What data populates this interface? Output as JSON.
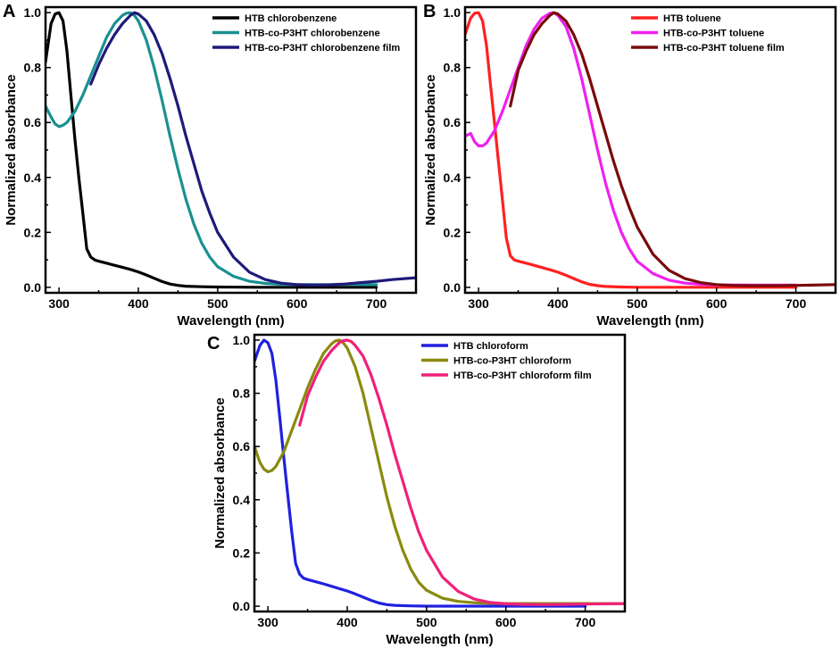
{
  "chart_data": [
    {
      "type": "line",
      "panel": "A",
      "xlabel": "Wavelength (nm)",
      "ylabel": "Normalized absorbance",
      "xlim": [
        283,
        750
      ],
      "ylim": [
        -0.02,
        1.02
      ],
      "xticks": [
        300,
        400,
        500,
        600,
        700
      ],
      "xtick_labels": [
        "300",
        "400",
        "500",
        "600",
        "700"
      ],
      "yticks": [
        0.0,
        0.2,
        0.4,
        0.6,
        0.8,
        1.0
      ],
      "ytick_labels": [
        "0.0",
        "0.2",
        "0.4",
        "0.6",
        "0.8",
        "1.0"
      ],
      "legend_position": "top-right",
      "series": [
        {
          "name": "HTB chlorobenzene",
          "color": "#000000",
          "x": [
            283,
            290,
            295,
            300,
            305,
            310,
            315,
            320,
            325,
            330,
            335,
            340,
            345,
            350,
            360,
            370,
            380,
            390,
            400,
            410,
            420,
            430,
            440,
            450,
            460,
            480,
            500,
            550,
            600,
            650,
            700
          ],
          "y": [
            0.82,
            0.96,
            0.995,
            1.0,
            0.97,
            0.86,
            0.7,
            0.54,
            0.4,
            0.27,
            0.14,
            0.11,
            0.1,
            0.095,
            0.088,
            0.08,
            0.073,
            0.065,
            0.056,
            0.045,
            0.033,
            0.021,
            0.012,
            0.007,
            0.004,
            0.002,
            0.001,
            0.0,
            0.0,
            0.0,
            0.0
          ]
        },
        {
          "name": "HTB-co-P3HT chlorobenzene",
          "color": "#1a9090",
          "x": [
            283,
            290,
            295,
            300,
            305,
            310,
            320,
            330,
            340,
            350,
            360,
            370,
            380,
            385,
            390,
            395,
            400,
            410,
            420,
            430,
            440,
            450,
            460,
            470,
            480,
            490,
            500,
            520,
            540,
            560,
            580,
            600,
            650,
            700
          ],
          "y": [
            0.66,
            0.62,
            0.595,
            0.585,
            0.59,
            0.6,
            0.64,
            0.7,
            0.77,
            0.84,
            0.91,
            0.96,
            0.99,
            0.998,
            1.0,
            0.99,
            0.97,
            0.9,
            0.8,
            0.68,
            0.55,
            0.43,
            0.32,
            0.23,
            0.16,
            0.11,
            0.075,
            0.04,
            0.022,
            0.014,
            0.011,
            0.01,
            0.01,
            0.01
          ]
        },
        {
          "name": "HTB-co-P3HT chlorobenzene film",
          "color": "#1f1a7a",
          "x": [
            340,
            350,
            360,
            370,
            380,
            390,
            395,
            400,
            410,
            420,
            430,
            440,
            450,
            460,
            470,
            480,
            490,
            500,
            520,
            540,
            560,
            580,
            600,
            620,
            640,
            660,
            680,
            700,
            720,
            750
          ],
          "y": [
            0.74,
            0.81,
            0.87,
            0.92,
            0.96,
            0.99,
            1.0,
            0.995,
            0.97,
            0.92,
            0.85,
            0.76,
            0.66,
            0.55,
            0.45,
            0.35,
            0.27,
            0.2,
            0.11,
            0.055,
            0.028,
            0.015,
            0.01,
            0.008,
            0.009,
            0.012,
            0.017,
            0.022,
            0.028,
            0.035
          ]
        }
      ]
    },
    {
      "type": "line",
      "panel": "B",
      "xlabel": "Wavelength (nm)",
      "ylabel": "Normalized absorbance",
      "xlim": [
        283,
        750
      ],
      "ylim": [
        -0.02,
        1.02
      ],
      "xticks": [
        300,
        400,
        500,
        600,
        700
      ],
      "xtick_labels": [
        "300",
        "400",
        "500",
        "600",
        "700"
      ],
      "yticks": [
        0.0,
        0.2,
        0.4,
        0.6,
        0.8,
        1.0
      ],
      "ytick_labels": [
        "0.0",
        "0.2",
        "0.4",
        "0.6",
        "0.8",
        "1.0"
      ],
      "legend_position": "top-right",
      "series": [
        {
          "name": "HTB toluene",
          "color": "#ff2020",
          "x": [
            283,
            290,
            295,
            300,
            305,
            310,
            315,
            320,
            325,
            330,
            335,
            340,
            345,
            350,
            360,
            370,
            380,
            390,
            400,
            410,
            420,
            430,
            440,
            450,
            460,
            480,
            500,
            550,
            600,
            650,
            700
          ],
          "y": [
            0.92,
            0.98,
            0.998,
            1.0,
            0.97,
            0.88,
            0.74,
            0.6,
            0.46,
            0.32,
            0.18,
            0.115,
            0.1,
            0.095,
            0.088,
            0.08,
            0.072,
            0.064,
            0.055,
            0.044,
            0.032,
            0.02,
            0.011,
            0.006,
            0.003,
            0.001,
            0.0,
            0.0,
            0.0,
            0.0,
            0.0
          ]
        },
        {
          "name": "HTB-co-P3HT toluene",
          "color": "#f020f0",
          "x": [
            283,
            290,
            295,
            300,
            305,
            310,
            320,
            330,
            340,
            350,
            360,
            370,
            380,
            390,
            395,
            400,
            410,
            420,
            430,
            440,
            450,
            460,
            470,
            480,
            490,
            500,
            520,
            540,
            560,
            580,
            600,
            650,
            700
          ],
          "y": [
            0.55,
            0.56,
            0.53,
            0.515,
            0.515,
            0.525,
            0.57,
            0.64,
            0.72,
            0.8,
            0.88,
            0.94,
            0.98,
            0.998,
            1.0,
            0.99,
            0.95,
            0.87,
            0.76,
            0.63,
            0.5,
            0.38,
            0.28,
            0.2,
            0.14,
            0.095,
            0.05,
            0.026,
            0.015,
            0.011,
            0.009,
            0.008,
            0.008
          ]
        },
        {
          "name": "HTB-co-P3HT toluene film",
          "color": "#7a0a0a",
          "x": [
            340,
            350,
            360,
            370,
            380,
            390,
            395,
            400,
            410,
            420,
            430,
            440,
            450,
            460,
            470,
            480,
            490,
            500,
            520,
            540,
            560,
            580,
            600,
            620,
            640,
            660,
            680,
            700,
            720,
            750
          ],
          "y": [
            0.66,
            0.79,
            0.86,
            0.92,
            0.96,
            0.99,
            1.0,
            0.995,
            0.97,
            0.92,
            0.85,
            0.76,
            0.66,
            0.56,
            0.46,
            0.37,
            0.29,
            0.22,
            0.12,
            0.062,
            0.032,
            0.017,
            0.01,
            0.007,
            0.006,
            0.006,
            0.006,
            0.007,
            0.008,
            0.01
          ]
        }
      ]
    },
    {
      "type": "line",
      "panel": "C",
      "xlabel": "Wavelength (nm)",
      "ylabel": "Normalized absorbance",
      "xlim": [
        283,
        750
      ],
      "ylim": [
        -0.02,
        1.02
      ],
      "xticks": [
        300,
        400,
        500,
        600,
        700
      ],
      "xtick_labels": [
        "300",
        "400",
        "500",
        "600",
        "700"
      ],
      "yticks": [
        0.0,
        0.2,
        0.4,
        0.6,
        0.8,
        1.0
      ],
      "ytick_labels": [
        "0.0",
        "0.2",
        "0.4",
        "0.6",
        "0.8",
        "1.0"
      ],
      "legend_position": "top-right",
      "series": [
        {
          "name": "HTB chloroform",
          "color": "#2020e0",
          "x": [
            283,
            290,
            295,
            300,
            305,
            310,
            315,
            320,
            325,
            330,
            335,
            340,
            345,
            350,
            360,
            370,
            380,
            390,
            400,
            410,
            420,
            430,
            440,
            450,
            460,
            480,
            500,
            550,
            600,
            650,
            700
          ],
          "y": [
            0.92,
            0.98,
            1.0,
            0.99,
            0.95,
            0.85,
            0.71,
            0.56,
            0.42,
            0.28,
            0.16,
            0.12,
            0.105,
            0.1,
            0.092,
            0.084,
            0.075,
            0.066,
            0.057,
            0.046,
            0.034,
            0.022,
            0.012,
            0.006,
            0.003,
            0.001,
            0.0,
            0.0,
            0.0,
            0.0,
            0.0
          ]
        },
        {
          "name": "HTB-co-P3HT chloroform",
          "color": "#8a8a10",
          "x": [
            283,
            290,
            295,
            300,
            305,
            310,
            320,
            330,
            340,
            350,
            360,
            370,
            380,
            385,
            390,
            395,
            400,
            410,
            420,
            430,
            440,
            450,
            460,
            470,
            480,
            490,
            500,
            520,
            540,
            560,
            580,
            600,
            650,
            700,
            750
          ],
          "y": [
            0.6,
            0.54,
            0.515,
            0.505,
            0.51,
            0.525,
            0.58,
            0.66,
            0.74,
            0.82,
            0.89,
            0.95,
            0.985,
            0.997,
            1.0,
            0.99,
            0.97,
            0.9,
            0.8,
            0.67,
            0.54,
            0.41,
            0.3,
            0.21,
            0.14,
            0.09,
            0.06,
            0.03,
            0.018,
            0.013,
            0.011,
            0.01,
            0.01,
            0.01,
            0.01
          ]
        },
        {
          "name": "HTB-co-P3HT chloroform film",
          "color": "#f0207a",
          "x": [
            340,
            350,
            360,
            370,
            380,
            390,
            395,
            400,
            405,
            410,
            420,
            430,
            440,
            450,
            460,
            470,
            480,
            490,
            500,
            520,
            540,
            560,
            580,
            600,
            620,
            650,
            700,
            750
          ],
          "y": [
            0.68,
            0.79,
            0.86,
            0.92,
            0.96,
            0.99,
            0.998,
            1.0,
            0.995,
            0.98,
            0.94,
            0.87,
            0.78,
            0.68,
            0.57,
            0.47,
            0.37,
            0.28,
            0.21,
            0.11,
            0.055,
            0.027,
            0.014,
            0.009,
            0.007,
            0.006,
            0.008,
            0.01
          ]
        }
      ]
    }
  ]
}
